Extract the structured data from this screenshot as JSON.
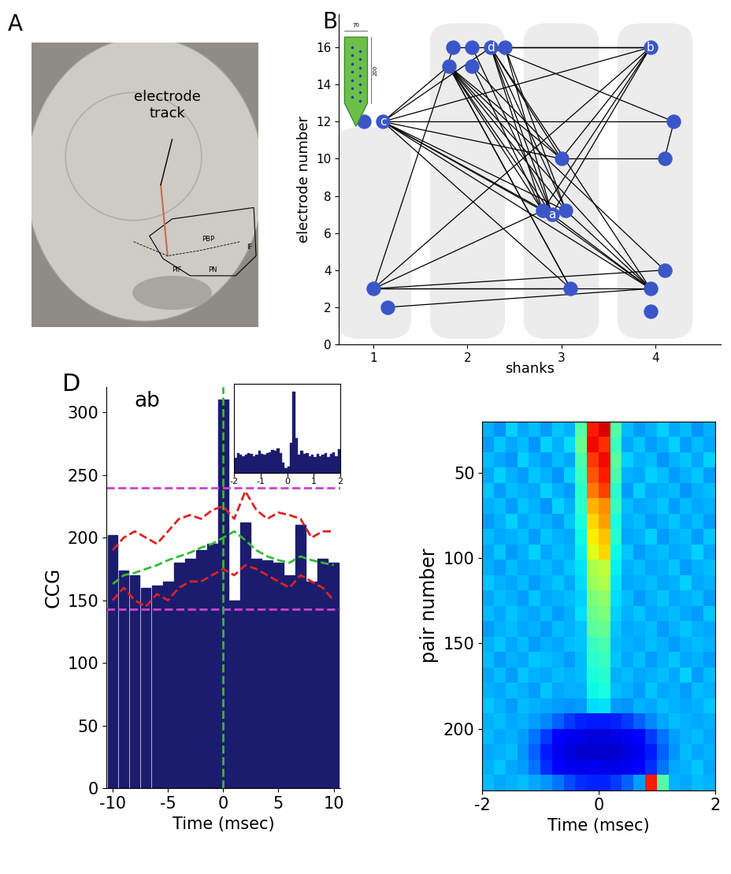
{
  "panel_labels": [
    "A",
    "B",
    "D"
  ],
  "chart_data": [
    {
      "type": "image",
      "annotation": "electrode\ntrack",
      "region_labels": [
        "PBP",
        "PIF",
        "PN",
        "IF"
      ]
    },
    {
      "type": "network",
      "x_label": "shanks",
      "y_label": "electrode number",
      "xlim": [
        0.63,
        4.7
      ],
      "xticks": [
        1,
        2,
        3,
        4
      ],
      "ylim": [
        0,
        17.8
      ],
      "yticks": [
        0,
        2,
        4,
        6,
        8,
        10,
        12,
        14,
        16
      ],
      "color": "#3a56c8",
      "probe_dims": {
        "width": 70,
        "length": 200
      },
      "nodes": [
        {
          "x": 0.9,
          "y": 12
        },
        {
          "x": 1.1,
          "y": 12,
          "label": "c"
        },
        {
          "x": 1.0,
          "y": 3
        },
        {
          "x": 1.15,
          "y": 2
        },
        {
          "x": 1.8,
          "y": 15
        },
        {
          "x": 1.85,
          "y": 16
        },
        {
          "x": 2.05,
          "y": 16
        },
        {
          "x": 2.25,
          "y": 16,
          "label": "d"
        },
        {
          "x": 2.4,
          "y": 16
        },
        {
          "x": 2.05,
          "y": 15
        },
        {
          "x": 2.8,
          "y": 7.2
        },
        {
          "x": 2.9,
          "y": 7,
          "label": "a"
        },
        {
          "x": 3.05,
          "y": 7.2
        },
        {
          "x": 3.0,
          "y": 10
        },
        {
          "x": 3.1,
          "y": 3
        },
        {
          "x": 3.95,
          "y": 16,
          "label": "b"
        },
        {
          "x": 4.2,
          "y": 12
        },
        {
          "x": 4.1,
          "y": 10
        },
        {
          "x": 4.1,
          "y": 4
        },
        {
          "x": 3.95,
          "y": 3
        },
        {
          "x": 3.95,
          "y": 1.8
        }
      ],
      "edges": [
        [
          1,
          11
        ],
        [
          1,
          10
        ],
        [
          1,
          12
        ],
        [
          1,
          16
        ],
        [
          1,
          13
        ],
        [
          1,
          19
        ],
        [
          1,
          14
        ],
        [
          1,
          15
        ],
        [
          1,
          4
        ],
        [
          1,
          7
        ],
        [
          4,
          11
        ],
        [
          4,
          10
        ],
        [
          4,
          12
        ],
        [
          4,
          13
        ],
        [
          4,
          19
        ],
        [
          4,
          18
        ],
        [
          4,
          14
        ],
        [
          7,
          15
        ],
        [
          7,
          11
        ],
        [
          7,
          12
        ],
        [
          7,
          13
        ],
        [
          7,
          16
        ],
        [
          7,
          19
        ],
        [
          7,
          10
        ],
        [
          8,
          15
        ],
        [
          8,
          11
        ],
        [
          8,
          12
        ],
        [
          5,
          15
        ],
        [
          6,
          11
        ],
        [
          9,
          10
        ],
        [
          9,
          13
        ],
        [
          15,
          10
        ],
        [
          15,
          11
        ],
        [
          15,
          2
        ],
        [
          15,
          13
        ],
        [
          16,
          17
        ],
        [
          2,
          14
        ],
        [
          2,
          18
        ],
        [
          2,
          19
        ],
        [
          2,
          10
        ],
        [
          2,
          5
        ],
        [
          3,
          19
        ],
        [
          11,
          19
        ],
        [
          12,
          19
        ],
        [
          10,
          19
        ],
        [
          13,
          17
        ],
        [
          14,
          4
        ]
      ]
    },
    {
      "type": "bar",
      "title": "ab",
      "x_label": "Time (msec)",
      "y_label": "CCG",
      "color": "#1c1c6e",
      "x": [
        -10,
        -9,
        -8,
        -7,
        -6,
        -5,
        -4,
        -3,
        -2,
        -1,
        0,
        1,
        2,
        3,
        4,
        5,
        6,
        7,
        8,
        9,
        10
      ],
      "values": [
        202,
        174,
        170,
        160,
        162,
        165,
        180,
        183,
        190,
        195,
        310,
        150,
        212,
        183,
        182,
        180,
        170,
        210,
        165,
        183,
        180
      ],
      "xlim": [
        -10.6,
        10.6
      ],
      "xticks": [
        -10,
        -5,
        0,
        5,
        10
      ],
      "ylim": [
        0,
        320
      ],
      "yticks": [
        0,
        50,
        100,
        150,
        200,
        250,
        300
      ],
      "thresholds": [
        {
          "value": 240,
          "color": "#cc44cc"
        },
        {
          "value": 143,
          "color": "#cc44cc"
        }
      ],
      "vline": {
        "value": 0,
        "color": "#33bb33"
      },
      "series": [
        {
          "color": "#33bb33",
          "line_style": "dashed",
          "values": [
            163,
            170,
            172,
            175,
            178,
            182,
            185,
            188,
            192,
            195,
            200,
            205,
            198,
            190,
            185,
            182,
            180,
            185,
            182,
            180,
            178
          ]
        },
        {
          "color": "#dd2222",
          "line_style": "dashed",
          "values": [
            190,
            200,
            205,
            200,
            195,
            205,
            215,
            218,
            215,
            222,
            225,
            215,
            237,
            222,
            215,
            220,
            218,
            215,
            200,
            205,
            205
          ]
        },
        {
          "color": "#dd2222",
          "line_style": "dashed",
          "values": [
            150,
            160,
            150,
            145,
            155,
            150,
            160,
            165,
            165,
            170,
            175,
            170,
            178,
            175,
            170,
            165,
            160,
            170,
            165,
            160,
            150
          ]
        }
      ],
      "inset": {
        "type": "bar",
        "tick_labels": "x",
        "xlim": [
          -2,
          2
        ],
        "xticks": [
          -2,
          -1,
          0,
          1,
          2
        ],
        "ylim": [
          0,
          90
        ],
        "bins": [
          -2.0,
          -1.9,
          -1.8,
          -1.7,
          -1.6,
          -1.5,
          -1.4,
          -1.3,
          -1.2,
          -1.1,
          -1.0,
          -0.9,
          -0.8,
          -0.7,
          -0.6,
          -0.5,
          -0.4,
          -0.3,
          -0.2,
          -0.1,
          0.0,
          0.1,
          0.2,
          0.3,
          0.4,
          0.5,
          0.6,
          0.7,
          0.8,
          0.9,
          1.0,
          1.1,
          1.2,
          1.3,
          1.4,
          1.5,
          1.6,
          1.7,
          1.8,
          1.9,
          2.0
        ],
        "values": [
          15,
          20,
          18,
          17,
          18,
          20,
          19,
          17,
          18,
          22,
          19,
          18,
          20,
          21,
          23,
          22,
          25,
          20,
          10,
          5,
          6,
          30,
          82,
          35,
          18,
          22,
          19,
          20,
          17,
          18,
          16,
          19,
          17,
          18,
          20,
          16,
          19,
          21,
          17,
          24
        ]
      }
    },
    {
      "type": "heatmap",
      "x_label": "Time (msec)",
      "y_label": "pair number",
      "xlim": [
        -2,
        2
      ],
      "xticks": [
        -2,
        0,
        2
      ],
      "ylim": [
        236,
        20
      ],
      "yticks": [
        50,
        100,
        150,
        200
      ],
      "clim": [
        0,
        1
      ],
      "x_edges": [
        -2.0,
        -1.8,
        -1.6,
        -1.4,
        -1.2,
        -1.0,
        -0.8,
        -0.6,
        -0.4,
        -0.2,
        0.0,
        0.2,
        0.4,
        0.6,
        0.8,
        1.0,
        1.2,
        1.4,
        1.6,
        1.8,
        2.0
      ],
      "y_edges": [
        20,
        29,
        38,
        47,
        56,
        65,
        74,
        83,
        92,
        101,
        110,
        119,
        128,
        137,
        146,
        155,
        164,
        173,
        182,
        191,
        200,
        209,
        218,
        227,
        236
      ],
      "cells": [
        [
          0.3,
          0.27,
          0.33,
          0.29,
          0.31,
          0.28,
          0.32,
          0.3,
          0.45,
          0.88,
          0.92,
          0.45,
          0.31,
          0.28,
          0.3,
          0.33,
          0.29,
          0.31,
          0.27,
          0.3
        ],
        [
          0.28,
          0.32,
          0.29,
          0.31,
          0.27,
          0.33,
          0.3,
          0.34,
          0.48,
          0.9,
          0.86,
          0.42,
          0.29,
          0.32,
          0.28,
          0.3,
          0.33,
          0.28,
          0.31,
          0.29
        ],
        [
          0.31,
          0.29,
          0.27,
          0.33,
          0.3,
          0.28,
          0.31,
          0.29,
          0.44,
          0.85,
          0.9,
          0.46,
          0.33,
          0.3,
          0.31,
          0.27,
          0.3,
          0.32,
          0.29,
          0.33
        ],
        [
          0.29,
          0.33,
          0.3,
          0.28,
          0.32,
          0.3,
          0.27,
          0.33,
          0.42,
          0.82,
          0.88,
          0.44,
          0.3,
          0.29,
          0.33,
          0.31,
          0.28,
          0.3,
          0.32,
          0.28
        ],
        [
          0.32,
          0.28,
          0.31,
          0.3,
          0.29,
          0.33,
          0.3,
          0.28,
          0.4,
          0.78,
          0.84,
          0.4,
          0.28,
          0.33,
          0.29,
          0.3,
          0.31,
          0.27,
          0.3,
          0.31
        ],
        [
          0.3,
          0.31,
          0.28,
          0.32,
          0.3,
          0.27,
          0.33,
          0.3,
          0.4,
          0.72,
          0.76,
          0.42,
          0.31,
          0.29,
          0.3,
          0.32,
          0.28,
          0.31,
          0.29,
          0.3
        ],
        [
          0.28,
          0.3,
          0.33,
          0.29,
          0.31,
          0.3,
          0.28,
          0.32,
          0.38,
          0.68,
          0.74,
          0.38,
          0.3,
          0.31,
          0.28,
          0.3,
          0.32,
          0.29,
          0.31,
          0.28
        ],
        [
          0.31,
          0.29,
          0.3,
          0.31,
          0.28,
          0.32,
          0.3,
          0.29,
          0.37,
          0.66,
          0.7,
          0.4,
          0.29,
          0.3,
          0.33,
          0.28,
          0.3,
          0.31,
          0.28,
          0.32
        ],
        [
          0.29,
          0.32,
          0.28,
          0.3,
          0.33,
          0.29,
          0.31,
          0.3,
          0.36,
          0.62,
          0.68,
          0.37,
          0.32,
          0.28,
          0.3,
          0.31,
          0.29,
          0.3,
          0.33,
          0.29
        ],
        [
          0.3,
          0.28,
          0.31,
          0.29,
          0.3,
          0.31,
          0.29,
          0.32,
          0.35,
          0.56,
          0.58,
          0.36,
          0.3,
          0.31,
          0.29,
          0.3,
          0.32,
          0.28,
          0.3,
          0.31
        ],
        [
          0.32,
          0.3,
          0.29,
          0.31,
          0.28,
          0.3,
          0.32,
          0.29,
          0.34,
          0.54,
          0.56,
          0.35,
          0.29,
          0.3,
          0.31,
          0.29,
          0.3,
          0.33,
          0.29,
          0.3
        ],
        [
          0.29,
          0.31,
          0.3,
          0.28,
          0.32,
          0.29,
          0.3,
          0.31,
          0.33,
          0.5,
          0.52,
          0.34,
          0.31,
          0.28,
          0.3,
          0.32,
          0.29,
          0.3,
          0.31,
          0.28
        ],
        [
          0.31,
          0.29,
          0.32,
          0.3,
          0.29,
          0.31,
          0.28,
          0.3,
          0.34,
          0.48,
          0.5,
          0.33,
          0.3,
          0.32,
          0.29,
          0.3,
          0.31,
          0.29,
          0.28,
          0.32
        ],
        [
          0.28,
          0.3,
          0.31,
          0.29,
          0.3,
          0.28,
          0.31,
          0.3,
          0.32,
          0.46,
          0.47,
          0.32,
          0.29,
          0.3,
          0.31,
          0.28,
          0.3,
          0.32,
          0.3,
          0.29
        ],
        [
          0.3,
          0.32,
          0.29,
          0.31,
          0.28,
          0.3,
          0.29,
          0.31,
          0.32,
          0.42,
          0.44,
          0.31,
          0.3,
          0.29,
          0.31,
          0.3,
          0.28,
          0.3,
          0.31,
          0.3
        ],
        [
          0.31,
          0.28,
          0.3,
          0.29,
          0.32,
          0.31,
          0.3,
          0.28,
          0.31,
          0.4,
          0.42,
          0.32,
          0.29,
          0.31,
          0.28,
          0.3,
          0.32,
          0.29,
          0.3,
          0.28
        ],
        [
          0.29,
          0.31,
          0.28,
          0.32,
          0.3,
          0.29,
          0.31,
          0.3,
          0.31,
          0.38,
          0.4,
          0.3,
          0.31,
          0.29,
          0.3,
          0.31,
          0.29,
          0.33,
          0.28,
          0.31
        ],
        [
          0.3,
          0.29,
          0.31,
          0.3,
          0.28,
          0.32,
          0.29,
          0.3,
          0.3,
          0.37,
          0.38,
          0.31,
          0.3,
          0.28,
          0.32,
          0.29,
          0.3,
          0.28,
          0.31,
          0.3
        ],
        [
          0.32,
          0.3,
          0.28,
          0.31,
          0.3,
          0.29,
          0.28,
          0.27,
          0.28,
          0.34,
          0.35,
          0.28,
          0.27,
          0.3,
          0.29,
          0.31,
          0.3,
          0.29,
          0.3,
          0.32
        ],
        [
          0.3,
          0.31,
          0.29,
          0.3,
          0.28,
          0.26,
          0.22,
          0.18,
          0.16,
          0.15,
          0.15,
          0.16,
          0.18,
          0.22,
          0.26,
          0.29,
          0.31,
          0.3,
          0.29,
          0.3
        ],
        [
          0.31,
          0.29,
          0.3,
          0.28,
          0.24,
          0.18,
          0.12,
          0.1,
          0.09,
          0.08,
          0.08,
          0.09,
          0.1,
          0.12,
          0.18,
          0.24,
          0.28,
          0.3,
          0.31,
          0.29
        ],
        [
          0.29,
          0.3,
          0.31,
          0.27,
          0.22,
          0.15,
          0.1,
          0.08,
          0.07,
          0.07,
          0.07,
          0.07,
          0.08,
          0.1,
          0.15,
          0.22,
          0.27,
          0.31,
          0.29,
          0.3
        ],
        [
          0.3,
          0.32,
          0.29,
          0.28,
          0.24,
          0.17,
          0.12,
          0.1,
          0.09,
          0.1,
          0.09,
          0.09,
          0.1,
          0.12,
          0.17,
          0.24,
          0.29,
          0.3,
          0.32,
          0.29
        ],
        [
          0.31,
          0.29,
          0.3,
          0.31,
          0.29,
          0.27,
          0.24,
          0.2,
          0.17,
          0.16,
          0.16,
          0.18,
          0.22,
          0.28,
          0.88,
          0.45,
          0.3,
          0.29,
          0.31,
          0.3
        ]
      ]
    }
  ]
}
